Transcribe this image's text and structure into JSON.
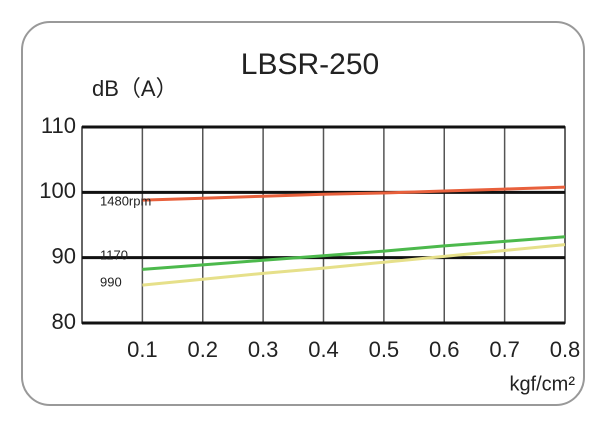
{
  "chart_data": {
    "type": "line",
    "title": "LBSR-250",
    "y_label": "dB（A）",
    "x_label": "kgf/cm²",
    "x": [
      0.1,
      0.2,
      0.3,
      0.4,
      0.5,
      0.6,
      0.7,
      0.8
    ],
    "series": [
      {
        "name": "1480rpm",
        "color": "#e8603c",
        "values": [
          98.8,
          99.1,
          99.4,
          99.7,
          99.9,
          100.2,
          100.5,
          100.8
        ]
      },
      {
        "name": "1170",
        "color": "#4cb94c",
        "values": [
          88.2,
          88.9,
          89.6,
          90.3,
          91.0,
          91.8,
          92.5,
          93.2
        ]
      },
      {
        "name": "990",
        "color": "#e6e08a",
        "values": [
          85.8,
          86.7,
          87.6,
          88.4,
          89.3,
          90.2,
          91.1,
          92.0
        ]
      }
    ],
    "xlim": [
      0,
      0.8
    ],
    "ylim": [
      80,
      110
    ],
    "xticks": [
      0.1,
      0.2,
      0.3,
      0.4,
      0.5,
      0.6,
      0.7,
      0.8
    ],
    "yticks": [
      80,
      90,
      100,
      110
    ],
    "grid": true
  }
}
